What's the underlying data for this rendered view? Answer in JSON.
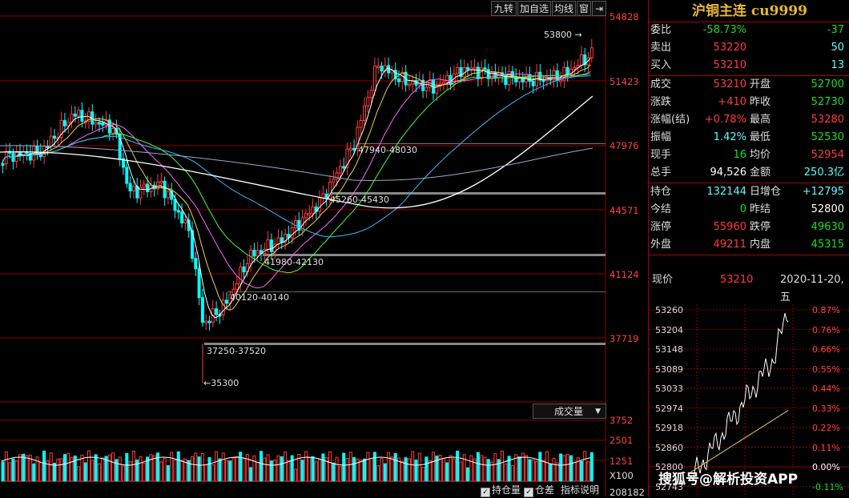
{
  "toolbar": {
    "b1": "九转",
    "b2": "加自选",
    "b3": "均线",
    "b4": "窗",
    "b5": "⇥"
  },
  "title": "沪铜主连 cu9999",
  "quote_rows": [
    {
      "l1": "委比",
      "v1": "-58.73%",
      "c1": "green",
      "v2": "-37",
      "c2": "green"
    },
    {
      "l1": "卖出",
      "v1": "53220",
      "c1": "red",
      "v2": "50",
      "c2": "cyan"
    },
    {
      "l1": "买入",
      "v1": "53210",
      "c1": "red",
      "v2": "13",
      "c2": "cyan"
    },
    {
      "l1": "成交",
      "v1": "53210",
      "c1": "red",
      "l2": "开盘",
      "v2": "52700",
      "c2": "green"
    },
    {
      "l1": "涨跌",
      "v1": "+410",
      "c1": "red",
      "l2": "昨收",
      "v2": "52730",
      "c2": "green"
    },
    {
      "l1": "涨幅(结)",
      "v1": "+0.78%",
      "c1": "red",
      "l2": "最高",
      "v2": "53280",
      "c2": "red"
    },
    {
      "l1": "振幅",
      "v1": "1.42%",
      "c1": "cyan",
      "l2": "最低",
      "v2": "52530",
      "c2": "green"
    },
    {
      "l1": "现手",
      "v1": "16",
      "c1": "green",
      "l2": "均价",
      "v2": "52954",
      "c2": "red"
    },
    {
      "l1": "总手",
      "v1": "94,526",
      "c1": "white",
      "l2": "金额",
      "v2": "250.3亿",
      "c2": "cyan"
    },
    {
      "l1": "持仓",
      "v1": "132144",
      "c1": "cyan",
      "l2": "日增仓",
      "v2": "+12795",
      "c2": "cyan"
    },
    {
      "l1": "今结",
      "v1": "0",
      "c1": "green",
      "l2": "昨结",
      "v2": "52800",
      "c2": "white"
    },
    {
      "l1": "涨停",
      "v1": "55960",
      "c1": "red",
      "l2": "跌停",
      "v2": "49630",
      "c2": "green"
    },
    {
      "l1": "外盘",
      "v1": "49211",
      "c1": "red",
      "l2": "内盘",
      "v2": "45315",
      "c2": "green"
    }
  ],
  "now": {
    "label": "现价",
    "price": "53210",
    "date": "2020-11-20,五"
  },
  "price_axis": [
    "54828",
    "51423",
    "47976",
    "44571",
    "41124",
    "37719"
  ],
  "volume_axis": [
    "3752",
    "2501",
    "1251",
    "X100"
  ],
  "volume_selector": "成交量",
  "volume_footer": "208182",
  "pivots": {
    "p1": "53800",
    "p2": "47940-48030",
    "p3": "45260-45430",
    "p4": "41980-42130",
    "p5": "40120-40140",
    "p6": "37250-37520",
    "p7": "35300"
  },
  "intraday_left": [
    "53260",
    "53204",
    "53148",
    "53089",
    "53033",
    "52974",
    "52918",
    "52860",
    "52800",
    "52743"
  ],
  "intraday_right": [
    "0.87%",
    "0.76%",
    "0.66%",
    "0.55%",
    "0.44%",
    "0.33%",
    "0.22%",
    "0.11%",
    "0.00%",
    "-0.11%"
  ],
  "checks": {
    "c1": "持仓量",
    "c2": "仓差",
    "c3": "指标说明"
  },
  "watermark": "搜狐号@解析投资APP",
  "colors": {
    "up": "#ff3b3b",
    "down": "#00ffff",
    "grid": "#8b0000",
    "ma5": "#ffffff",
    "ma10": "#e8d24a",
    "ma20": "#ff66ff",
    "ma30": "#44ff44",
    "ma60": "#33bbff"
  }
}
